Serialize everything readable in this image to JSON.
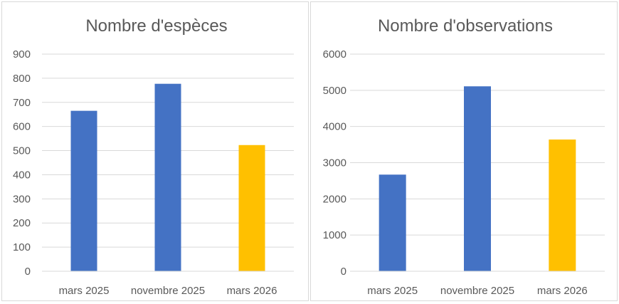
{
  "chart_data": [
    {
      "type": "bar",
      "title": "Nombre d'espèces",
      "categories": [
        "mars 2025",
        "novembre 2025",
        "mars 2026"
      ],
      "values": [
        665,
        777,
        523
      ],
      "bar_colors": [
        "#4472C4",
        "#4472C4",
        "#FFC000"
      ],
      "ylim": [
        0,
        900
      ],
      "ytick_step": 100,
      "yticks": [
        "0",
        "100",
        "200",
        "300",
        "400",
        "500",
        "600",
        "700",
        "800",
        "900"
      ],
      "grid": true,
      "legend": "none"
    },
    {
      "type": "bar",
      "title": "Nombre d'observations",
      "categories": [
        "mars 2025",
        "novembre 2025",
        "mars 2026"
      ],
      "values": [
        2670,
        5110,
        3640
      ],
      "bar_colors": [
        "#4472C4",
        "#4472C4",
        "#FFC000"
      ],
      "ylim": [
        0,
        6000
      ],
      "ytick_step": 1000,
      "yticks": [
        "0",
        "1000",
        "2000",
        "3000",
        "4000",
        "5000",
        "6000"
      ],
      "grid": true,
      "legend": "none"
    }
  ]
}
